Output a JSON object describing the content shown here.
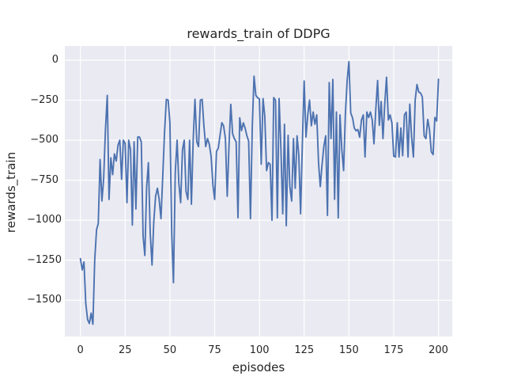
{
  "chart_data": {
    "type": "line",
    "title": "rewards_train of DDPG",
    "xlabel": "episodes",
    "ylabel": "rewards_train",
    "series_name": "rewards_train",
    "x_ticks": [
      0,
      25,
      50,
      75,
      100,
      125,
      150,
      175,
      200
    ],
    "x_tick_labels": [
      "0",
      "25",
      "50",
      "75",
      "100",
      "125",
      "150",
      "175",
      "200"
    ],
    "y_ticks": [
      0,
      -250,
      -500,
      -750,
      -1000,
      -1250,
      -1500
    ],
    "y_tick_labels": [
      "0",
      "−250",
      "−500",
      "−750",
      "−1000",
      "−1250",
      "−1500"
    ],
    "xlim": [
      -8.7,
      207.7
    ],
    "ylim": [
      -1726,
      89
    ],
    "grid": true,
    "legend_position": "none",
    "line_color": "#4c72b0",
    "plot_bg_color": "#eaeaf2",
    "grid_color": "#ffffff",
    "text_color": "#262626",
    "x": [
      0,
      1,
      2,
      3,
      4,
      5,
      6,
      7,
      8,
      9,
      10,
      11,
      12,
      13,
      14,
      15,
      16,
      17,
      18,
      19,
      20,
      21,
      22,
      23,
      24,
      25,
      26,
      27,
      28,
      29,
      30,
      31,
      32,
      33,
      34,
      35,
      36,
      37,
      38,
      39,
      40,
      41,
      42,
      43,
      44,
      45,
      46,
      47,
      48,
      49,
      50,
      51,
      52,
      53,
      54,
      55,
      56,
      57,
      58,
      59,
      60,
      61,
      62,
      63,
      64,
      65,
      66,
      67,
      68,
      69,
      70,
      71,
      72,
      73,
      74,
      75,
      76,
      77,
      78,
      79,
      80,
      81,
      82,
      83,
      84,
      85,
      86,
      87,
      88,
      89,
      90,
      91,
      92,
      93,
      94,
      95,
      96,
      97,
      98,
      99,
      100,
      101,
      102,
      103,
      104,
      105,
      106,
      107,
      108,
      109,
      110,
      111,
      112,
      113,
      114,
      115,
      116,
      117,
      118,
      119,
      120,
      121,
      122,
      123,
      124,
      125,
      126,
      127,
      128,
      129,
      130,
      131,
      132,
      133,
      134,
      135,
      136,
      137,
      138,
      139,
      140,
      141,
      142,
      143,
      144,
      145,
      146,
      147,
      148,
      149,
      150,
      151,
      152,
      153,
      154,
      155,
      156,
      157,
      158,
      159,
      160,
      161,
      162,
      163,
      164,
      165,
      166,
      167,
      168,
      169,
      170,
      171,
      172,
      173,
      174,
      175,
      176,
      177,
      178,
      179,
      180,
      181,
      182,
      183,
      184,
      185,
      186,
      187,
      188,
      189,
      190,
      191,
      192,
      193,
      194,
      195,
      196,
      197,
      198,
      199,
      200
    ],
    "values": [
      -1240,
      -1310,
      -1260,
      -1520,
      -1620,
      -1645,
      -1580,
      -1650,
      -1250,
      -1060,
      -1020,
      -620,
      -880,
      -740,
      -430,
      -220,
      -870,
      -610,
      -715,
      -585,
      -630,
      -530,
      -500,
      -745,
      -500,
      -520,
      -890,
      -500,
      -560,
      -1030,
      -510,
      -930,
      -480,
      -480,
      -510,
      -1100,
      -1220,
      -790,
      -640,
      -1080,
      -1280,
      -1010,
      -850,
      -800,
      -870,
      -990,
      -720,
      -450,
      -245,
      -250,
      -390,
      -1080,
      -1390,
      -700,
      -500,
      -770,
      -890,
      -560,
      -500,
      -820,
      -870,
      -500,
      -900,
      -490,
      -245,
      -510,
      -540,
      -250,
      -245,
      -410,
      -540,
      -490,
      -525,
      -600,
      -780,
      -870,
      -570,
      -550,
      -470,
      -390,
      -410,
      -490,
      -850,
      -540,
      -276,
      -460,
      -490,
      -510,
      -984,
      -360,
      -440,
      -391,
      -424,
      -473,
      -506,
      -990,
      -415,
      -100,
      -220,
      -235,
      -242,
      -650,
      -240,
      -350,
      -690,
      -640,
      -650,
      -1000,
      -234,
      -250,
      -985,
      -240,
      -550,
      -960,
      -400,
      -1034,
      -470,
      -790,
      -880,
      -490,
      -800,
      -473,
      -590,
      -960,
      -510,
      -130,
      -480,
      -340,
      -250,
      -410,
      -324,
      -400,
      -342,
      -640,
      -790,
      -650,
      -539,
      -473,
      -970,
      -140,
      -490,
      -120,
      -869,
      -324,
      -985,
      -342,
      -556,
      -690,
      -342,
      -125,
      -10,
      -330,
      -360,
      -424,
      -441,
      -433,
      -481,
      -374,
      -342,
      -605,
      -324,
      -358,
      -324,
      -374,
      -523,
      -308,
      -127,
      -407,
      -258,
      -490,
      -275,
      -107,
      -374,
      -342,
      -391,
      -600,
      -605,
      -391,
      -605,
      -424,
      -597,
      -342,
      -324,
      -605,
      -275,
      -481,
      -605,
      -250,
      -152,
      -200,
      -205,
      -230,
      -473,
      -490,
      -370,
      -433,
      -572,
      -590,
      -358,
      -380,
      -119
    ]
  }
}
